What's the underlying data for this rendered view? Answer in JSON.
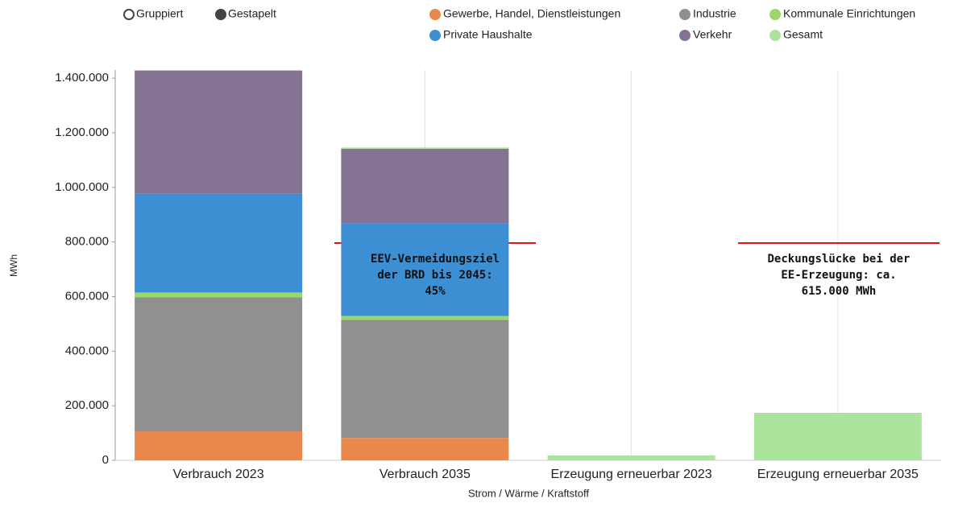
{
  "chart_data": {
    "type": "stacked-bar",
    "toggle": [
      "Gruppiert",
      "Gestapelt"
    ],
    "x_label": "Strom / Wärme / Kraftstoff",
    "y_label": "MWh",
    "categories": [
      "Verbrauch 2023",
      "Verbrauch 2035",
      "Erzeugung erneuerbar 2023",
      "Erzeugung erneuerbar 2035"
    ],
    "series": [
      {
        "name": "Gewerbe, Handel, Dienstleistungen",
        "color": "#e8884a",
        "values": [
          106000,
          82000,
          0,
          0
        ]
      },
      {
        "name": "Industrie",
        "color": "#909090",
        "values": [
          491000,
          433000,
          0,
          0
        ]
      },
      {
        "name": "Kommunale Einrichtungen",
        "color": "#9ad86a",
        "values": [
          18000,
          14000,
          0,
          0
        ]
      },
      {
        "name": "Private Haushalte",
        "color": "#3b8fd2",
        "values": [
          362000,
          339000,
          0,
          0
        ]
      },
      {
        "name": "Verkehr",
        "color": "#857393",
        "values": [
          450000,
          273000,
          0,
          0
        ]
      },
      {
        "name": "Gesamt",
        "color": "#abe49d",
        "values": [
          3000,
          5000,
          18000,
          174000
        ]
      }
    ],
    "ylim": [
      0,
      1430000
    ],
    "yticks": [
      0,
      {
        "value": 200000,
        "label": "200.000"
      },
      {
        "value": 400000,
        "label": "400.000"
      },
      {
        "value": 600000,
        "label": "600.000"
      },
      {
        "value": 800000,
        "label": "800.000"
      },
      {
        "value": 1000000,
        "label": "1.000.000"
      },
      {
        "value": 1200000,
        "label": "1.200.000"
      },
      {
        "value": 1400000,
        "label": "1.400.000"
      }
    ],
    "annotations": [
      {
        "lines": [
          "EEV-Vermeidungsziel",
          "der BRD bis 2045:",
          "45%"
        ]
      },
      {
        "lines": [
          "Deckungslücke bei der",
          "EE-Erzeugung: ca.",
          "615.000 MWh"
        ]
      }
    ]
  }
}
